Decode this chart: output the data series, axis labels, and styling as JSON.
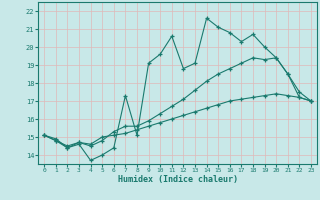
{
  "line1_x": [
    0,
    1,
    2,
    3,
    4,
    5,
    6,
    7,
    8,
    9,
    10,
    11,
    12,
    13,
    14,
    15,
    16,
    17,
    18,
    19,
    20,
    21,
    22,
    23
  ],
  "line1_y": [
    15.1,
    14.8,
    14.4,
    14.6,
    13.7,
    14.0,
    14.4,
    17.3,
    15.1,
    19.1,
    19.6,
    20.6,
    18.8,
    19.1,
    21.6,
    21.1,
    20.8,
    20.3,
    20.7,
    20.0,
    19.4,
    18.5,
    17.5,
    17.0
  ],
  "line2_x": [
    0,
    1,
    2,
    3,
    4,
    5,
    6,
    7,
    8,
    9,
    10,
    11,
    12,
    13,
    14,
    15,
    16,
    17,
    18,
    19,
    20,
    21,
    22,
    23
  ],
  "line2_y": [
    15.1,
    14.8,
    14.5,
    14.7,
    14.5,
    14.8,
    15.3,
    15.6,
    15.6,
    15.9,
    16.3,
    16.7,
    17.1,
    17.6,
    18.1,
    18.5,
    18.8,
    19.1,
    19.4,
    19.3,
    19.4,
    18.5,
    17.2,
    17.0
  ],
  "line3_x": [
    0,
    1,
    2,
    3,
    4,
    5,
    6,
    7,
    8,
    9,
    10,
    11,
    12,
    13,
    14,
    15,
    16,
    17,
    18,
    19,
    20,
    21,
    22,
    23
  ],
  "line3_y": [
    15.1,
    14.9,
    14.4,
    14.7,
    14.6,
    15.0,
    15.1,
    15.2,
    15.4,
    15.6,
    15.8,
    16.0,
    16.2,
    16.4,
    16.6,
    16.8,
    17.0,
    17.1,
    17.2,
    17.3,
    17.4,
    17.3,
    17.2,
    17.0
  ],
  "color": "#1a7a6e",
  "bg_color": "#c8e8e8",
  "grid_color": "#e0b8b8",
  "xlabel": "Humidex (Indice chaleur)",
  "ylim": [
    13.5,
    22.5
  ],
  "xlim": [
    -0.5,
    23.5
  ],
  "yticks": [
    14,
    15,
    16,
    17,
    18,
    19,
    20,
    21,
    22
  ],
  "xticks": [
    0,
    1,
    2,
    3,
    4,
    5,
    6,
    7,
    8,
    9,
    10,
    11,
    12,
    13,
    14,
    15,
    16,
    17,
    18,
    19,
    20,
    21,
    22,
    23
  ]
}
